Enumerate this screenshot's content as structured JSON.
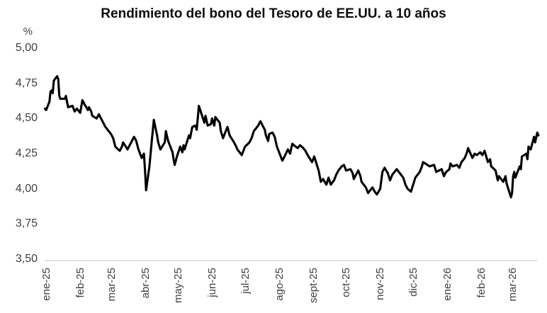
{
  "chart_data": {
    "type": "line",
    "title": "Rendimiento del bono del Tesoro de EE.UU. a 10 años",
    "ylabel": "%",
    "xlabel": "",
    "ylim": [
      3.5,
      5.0
    ],
    "x_domain": [
      "2025-01-01",
      "2026-03-29"
    ],
    "grid": false,
    "legend": "none",
    "line_color": "#000000",
    "axis_color": "#d9d9d9",
    "tick_color": "#3f3f3f",
    "y_ticks": [
      {
        "value": 5.0,
        "label": "5,00"
      },
      {
        "value": 4.75,
        "label": "4,75"
      },
      {
        "value": 4.5,
        "label": "4,50"
      },
      {
        "value": 4.25,
        "label": "4,25"
      },
      {
        "value": 4.0,
        "label": "4,00"
      },
      {
        "value": 3.75,
        "label": "3,75"
      },
      {
        "value": 3.5,
        "label": "3,50"
      }
    ],
    "x_ticks": [
      {
        "date": "2025-01-01",
        "label": "ene-25"
      },
      {
        "date": "2025-02-01",
        "label": "feb-25"
      },
      {
        "date": "2025-03-01",
        "label": "mar-25"
      },
      {
        "date": "2025-04-01",
        "label": "abr-25"
      },
      {
        "date": "2025-05-01",
        "label": "may-25"
      },
      {
        "date": "2025-06-01",
        "label": "jun-25"
      },
      {
        "date": "2025-07-01",
        "label": "jul-25"
      },
      {
        "date": "2025-08-01",
        "label": "ago-25"
      },
      {
        "date": "2025-09-01",
        "label": "sept-25"
      },
      {
        "date": "2025-10-01",
        "label": "oct-25"
      },
      {
        "date": "2025-11-01",
        "label": "nov-25"
      },
      {
        "date": "2025-12-01",
        "label": "dic-25"
      },
      {
        "date": "2026-01-01",
        "label": "ene-26"
      },
      {
        "date": "2026-02-01",
        "label": "feb-26"
      },
      {
        "date": "2026-03-01",
        "label": "mar-26"
      }
    ],
    "points": [
      [
        "2025-01-02",
        4.57
      ],
      [
        "2025-01-03",
        4.56
      ],
      [
        "2025-01-06",
        4.62
      ],
      [
        "2025-01-07",
        4.69
      ],
      [
        "2025-01-08",
        4.7
      ],
      [
        "2025-01-09",
        4.68
      ],
      [
        "2025-01-10",
        4.77
      ],
      [
        "2025-01-13",
        4.8
      ],
      [
        "2025-01-14",
        4.78
      ],
      [
        "2025-01-15",
        4.66
      ],
      [
        "2025-01-16",
        4.64
      ],
      [
        "2025-01-20",
        4.64
      ],
      [
        "2025-01-21",
        4.66
      ],
      [
        "2025-01-23",
        4.58
      ],
      [
        "2025-01-27",
        4.59
      ],
      [
        "2025-01-29",
        4.55
      ],
      [
        "2025-01-31",
        4.57
      ],
      [
        "2025-02-03",
        4.54
      ],
      [
        "2025-02-05",
        4.63
      ],
      [
        "2025-02-07",
        4.6
      ],
      [
        "2025-02-10",
        4.56
      ],
      [
        "2025-02-11",
        4.58
      ],
      [
        "2025-02-13",
        4.55
      ],
      [
        "2025-02-14",
        4.52
      ],
      [
        "2025-02-18",
        4.5
      ],
      [
        "2025-02-20",
        4.53
      ],
      [
        "2025-02-24",
        4.47
      ],
      [
        "2025-02-26",
        4.44
      ],
      [
        "2025-03-03",
        4.39
      ],
      [
        "2025-03-05",
        4.36
      ],
      [
        "2025-03-07",
        4.3
      ],
      [
        "2025-03-11",
        4.27
      ],
      [
        "2025-03-13",
        4.3
      ],
      [
        "2025-03-14",
        4.33
      ],
      [
        "2025-03-18",
        4.28
      ],
      [
        "2025-03-20",
        4.31
      ],
      [
        "2025-03-24",
        4.37
      ],
      [
        "2025-03-26",
        4.34
      ],
      [
        "2025-03-28",
        4.28
      ],
      [
        "2025-03-31",
        4.22
      ],
      [
        "2025-04-02",
        4.25
      ],
      [
        "2025-04-03",
        4.13
      ],
      [
        "2025-04-04",
        3.99
      ],
      [
        "2025-04-07",
        4.16
      ],
      [
        "2025-04-09",
        4.33
      ],
      [
        "2025-04-11",
        4.49
      ],
      [
        "2025-04-14",
        4.38
      ],
      [
        "2025-04-15",
        4.33
      ],
      [
        "2025-04-17",
        4.28
      ],
      [
        "2025-04-21",
        4.33
      ],
      [
        "2025-04-22",
        4.41
      ],
      [
        "2025-04-24",
        4.34
      ],
      [
        "2025-04-28",
        4.26
      ],
      [
        "2025-04-29",
        4.21
      ],
      [
        "2025-04-30",
        4.17
      ],
      [
        "2025-05-02",
        4.23
      ],
      [
        "2025-05-05",
        4.3
      ],
      [
        "2025-05-07",
        4.26
      ],
      [
        "2025-05-08",
        4.31
      ],
      [
        "2025-05-09",
        4.28
      ],
      [
        "2025-05-13",
        4.38
      ],
      [
        "2025-05-14",
        4.36
      ],
      [
        "2025-05-16",
        4.44
      ],
      [
        "2025-05-19",
        4.45
      ],
      [
        "2025-05-20",
        4.42
      ],
      [
        "2025-05-21",
        4.5
      ],
      [
        "2025-05-22",
        4.59
      ],
      [
        "2025-05-27",
        4.47
      ],
      [
        "2025-05-28",
        4.52
      ],
      [
        "2025-05-30",
        4.45
      ],
      [
        "2025-06-02",
        4.46
      ],
      [
        "2025-06-03",
        4.5
      ],
      [
        "2025-06-05",
        4.45
      ],
      [
        "2025-06-06",
        4.51
      ],
      [
        "2025-06-10",
        4.47
      ],
      [
        "2025-06-11",
        4.41
      ],
      [
        "2025-06-13",
        4.36
      ],
      [
        "2025-06-16",
        4.42
      ],
      [
        "2025-06-17",
        4.44
      ],
      [
        "2025-06-19",
        4.38
      ],
      [
        "2025-06-23",
        4.33
      ],
      [
        "2025-06-25",
        4.3
      ],
      [
        "2025-06-26",
        4.28
      ],
      [
        "2025-06-30",
        4.24
      ],
      [
        "2025-07-02",
        4.28
      ],
      [
        "2025-07-03",
        4.3
      ],
      [
        "2025-07-07",
        4.33
      ],
      [
        "2025-07-09",
        4.36
      ],
      [
        "2025-07-11",
        4.41
      ],
      [
        "2025-07-15",
        4.45
      ],
      [
        "2025-07-17",
        4.48
      ],
      [
        "2025-07-21",
        4.42
      ],
      [
        "2025-07-22",
        4.38
      ],
      [
        "2025-07-24",
        4.34
      ],
      [
        "2025-07-25",
        4.39
      ],
      [
        "2025-07-28",
        4.4
      ],
      [
        "2025-07-30",
        4.37
      ],
      [
        "2025-08-01",
        4.3
      ],
      [
        "2025-08-04",
        4.24
      ],
      [
        "2025-08-06",
        4.2
      ],
      [
        "2025-08-08",
        4.23
      ],
      [
        "2025-08-11",
        4.28
      ],
      [
        "2025-08-13",
        4.25
      ],
      [
        "2025-08-15",
        4.32
      ],
      [
        "2025-08-18",
        4.3
      ],
      [
        "2025-08-20",
        4.29
      ],
      [
        "2025-08-22",
        4.31
      ],
      [
        "2025-08-25",
        4.29
      ],
      [
        "2025-08-27",
        4.27
      ],
      [
        "2025-08-29",
        4.24
      ],
      [
        "2025-09-02",
        4.19
      ],
      [
        "2025-09-04",
        4.23
      ],
      [
        "2025-09-08",
        4.13
      ],
      [
        "2025-09-10",
        4.05
      ],
      [
        "2025-09-12",
        4.07
      ],
      [
        "2025-09-15",
        4.03
      ],
      [
        "2025-09-17",
        4.08
      ],
      [
        "2025-09-19",
        4.03
      ],
      [
        "2025-09-22",
        4.06
      ],
      [
        "2025-09-24",
        4.1
      ],
      [
        "2025-09-26",
        4.13
      ],
      [
        "2025-09-29",
        4.16
      ],
      [
        "2025-10-01",
        4.17
      ],
      [
        "2025-10-03",
        4.13
      ],
      [
        "2025-10-07",
        4.14
      ],
      [
        "2025-10-09",
        4.11
      ],
      [
        "2025-10-10",
        4.07
      ],
      [
        "2025-10-14",
        4.13
      ],
      [
        "2025-10-16",
        4.09
      ],
      [
        "2025-10-17",
        4.05
      ],
      [
        "2025-10-21",
        4.01
      ],
      [
        "2025-10-23",
        3.97
      ],
      [
        "2025-10-27",
        4.01
      ],
      [
        "2025-10-29",
        3.98
      ],
      [
        "2025-10-31",
        3.96
      ],
      [
        "2025-11-03",
        4.0
      ],
      [
        "2025-11-05",
        4.12
      ],
      [
        "2025-11-07",
        4.15
      ],
      [
        "2025-11-10",
        4.11
      ],
      [
        "2025-11-12",
        4.06
      ],
      [
        "2025-11-14",
        4.1
      ],
      [
        "2025-11-18",
        4.14
      ],
      [
        "2025-11-20",
        4.12
      ],
      [
        "2025-11-24",
        4.08
      ],
      [
        "2025-11-26",
        4.03
      ],
      [
        "2025-11-28",
        4.0
      ],
      [
        "2025-12-01",
        3.98
      ],
      [
        "2025-12-03",
        4.03
      ],
      [
        "2025-12-05",
        4.08
      ],
      [
        "2025-12-09",
        4.12
      ],
      [
        "2025-12-11",
        4.16
      ],
      [
        "2025-12-12",
        4.19
      ],
      [
        "2025-12-16",
        4.17
      ],
      [
        "2025-12-18",
        4.16
      ],
      [
        "2025-12-22",
        4.17
      ],
      [
        "2025-12-24",
        4.12
      ],
      [
        "2025-12-29",
        4.14
      ],
      [
        "2025-12-31",
        4.09
      ],
      [
        "2026-01-02",
        4.12
      ],
      [
        "2026-01-05",
        4.14
      ],
      [
        "2026-01-06",
        4.18
      ],
      [
        "2026-01-08",
        4.16
      ],
      [
        "2026-01-12",
        4.17
      ],
      [
        "2026-01-14",
        4.15
      ],
      [
        "2026-01-16",
        4.19
      ],
      [
        "2026-01-19",
        4.22
      ],
      [
        "2026-01-21",
        4.26
      ],
      [
        "2026-01-22",
        4.29
      ],
      [
        "2026-01-26",
        4.22
      ],
      [
        "2026-01-28",
        4.25
      ],
      [
        "2026-01-30",
        4.24
      ],
      [
        "2026-02-02",
        4.26
      ],
      [
        "2026-02-04",
        4.24
      ],
      [
        "2026-02-06",
        4.27
      ],
      [
        "2026-02-09",
        4.19
      ],
      [
        "2026-02-11",
        4.21
      ],
      [
        "2026-02-12",
        4.16
      ],
      [
        "2026-02-16",
        4.13
      ],
      [
        "2026-02-18",
        4.06
      ],
      [
        "2026-02-19",
        4.09
      ],
      [
        "2026-02-23",
        4.05
      ],
      [
        "2026-02-25",
        4.09
      ],
      [
        "2026-02-26",
        4.04
      ],
      [
        "2026-03-02",
        3.94
      ],
      [
        "2026-03-03",
        3.97
      ],
      [
        "2026-03-04",
        4.09
      ],
      [
        "2026-03-05",
        4.12
      ],
      [
        "2026-03-06",
        4.08
      ],
      [
        "2026-03-10",
        4.16
      ],
      [
        "2026-03-11",
        4.14
      ],
      [
        "2026-03-12",
        4.23
      ],
      [
        "2026-03-16",
        4.25
      ],
      [
        "2026-03-17",
        4.21
      ],
      [
        "2026-03-18",
        4.3
      ],
      [
        "2026-03-20",
        4.28
      ],
      [
        "2026-03-23",
        4.37
      ],
      [
        "2026-03-24",
        4.33
      ],
      [
        "2026-03-26",
        4.4
      ],
      [
        "2026-03-27",
        4.38
      ]
    ]
  }
}
